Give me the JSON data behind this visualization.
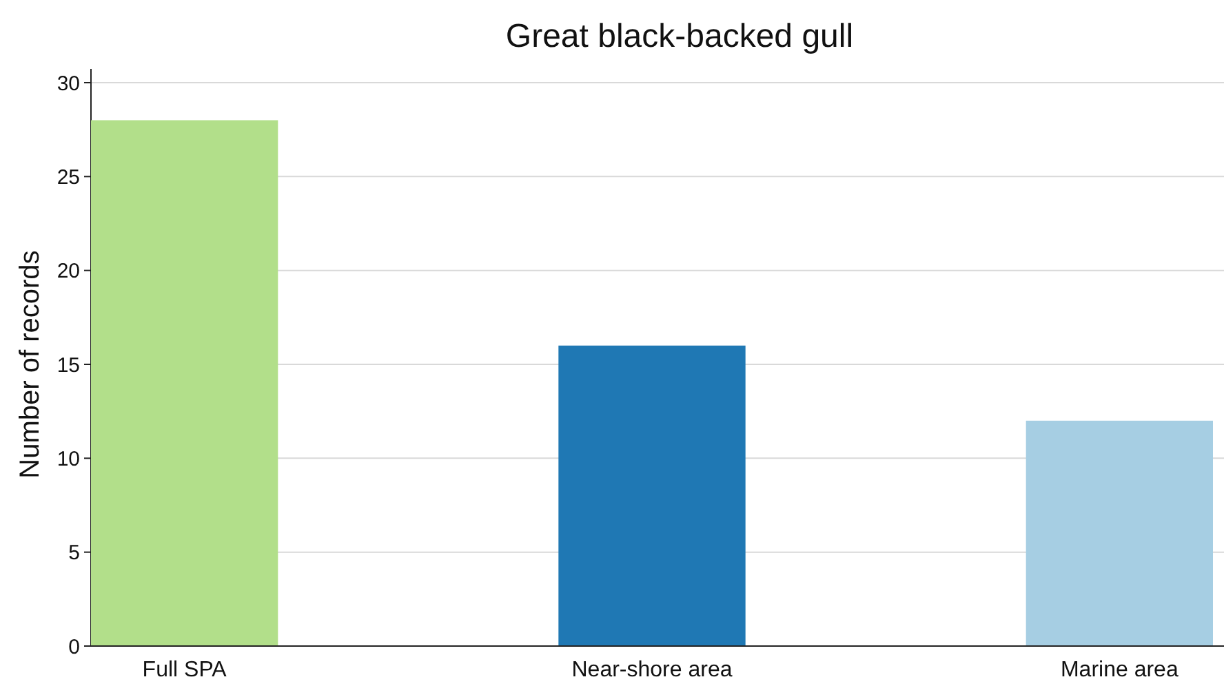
{
  "chart_data": {
    "type": "bar",
    "title": "Great black-backed gull",
    "ylabel": "Number of records",
    "categories": [
      "Full SPA",
      "Near-shore area",
      "Marine area"
    ],
    "values": [
      28,
      16,
      12
    ],
    "colors": [
      "#b2df8a",
      "#1f78b4",
      "#a6cee3"
    ],
    "ylim": [
      0,
      30
    ],
    "yticks": [
      0,
      5,
      10,
      15,
      20,
      25,
      30
    ],
    "grid": "y"
  }
}
